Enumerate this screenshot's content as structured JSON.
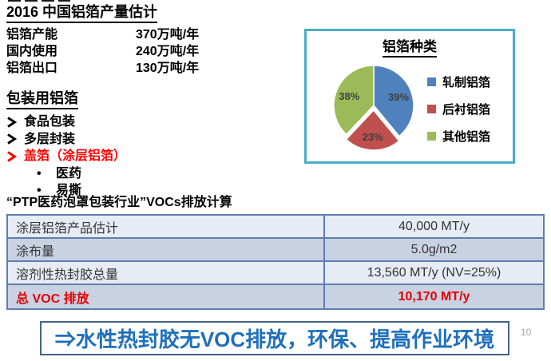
{
  "colors": {
    "accent_red": "#ff0000",
    "total_red": "#e60000",
    "banner_blue": "#1e6fbc",
    "banner_border": "#44618f",
    "table_border": "#5f7db0",
    "table_row_light": "#e6ebf4",
    "table_row_dark": "#c9d2e3",
    "chart_box_border": "#4bacc6",
    "page_number_gray": "#a6a6a6"
  },
  "production": {
    "title": "2016 中国铝箔产量估计",
    "rows": [
      {
        "label": "铝箔产能",
        "value": "370万吨/年"
      },
      {
        "label": "国内使用",
        "value": "240万吨/年"
      },
      {
        "label": "铝箔出口",
        "value": "130万吨/年"
      }
    ]
  },
  "packaging": {
    "title": "包装用铝箔",
    "items": [
      {
        "text": "食品包装"
      },
      {
        "text": "多层封装"
      },
      {
        "text": "盖箔（涂层铝箔）"
      }
    ],
    "sub_items": [
      {
        "bullet": "•",
        "text": "医药"
      },
      {
        "bullet": "•",
        "text": "易撕"
      }
    ]
  },
  "table_section": {
    "heading": "“PTP医药泡罩包装行业”VOCs排放计算",
    "rows": [
      {
        "label": "涂层铝箔产品估计",
        "value": "40,000 MT/y"
      },
      {
        "label": "涂布量",
        "value": "5.0g/m2"
      },
      {
        "label": "溶剂性热封胶总量",
        "value": "13,560 MT/y (NV=25%)"
      },
      {
        "label": "总 VOC 排放",
        "value": "10,170 MT/y"
      }
    ]
  },
  "banner": {
    "text": "⇒水性热封胶无VOC排放，环保、提高作业环境"
  },
  "page_number": "10",
  "chart_data": {
    "type": "pie",
    "title": "铝箔种类",
    "labels": [
      "轧制铝箔",
      "后衬铝箔",
      "其他铝箔"
    ],
    "values": [
      39,
      23,
      38
    ],
    "data_labels": [
      "39%",
      "23%",
      "38%"
    ],
    "colors": [
      "#4f81bd",
      "#c0504d",
      "#9bbb59"
    ],
    "exploded_slice": 1,
    "start_angle_deg": 0,
    "direction": "clockwise",
    "legend_position": "right"
  }
}
